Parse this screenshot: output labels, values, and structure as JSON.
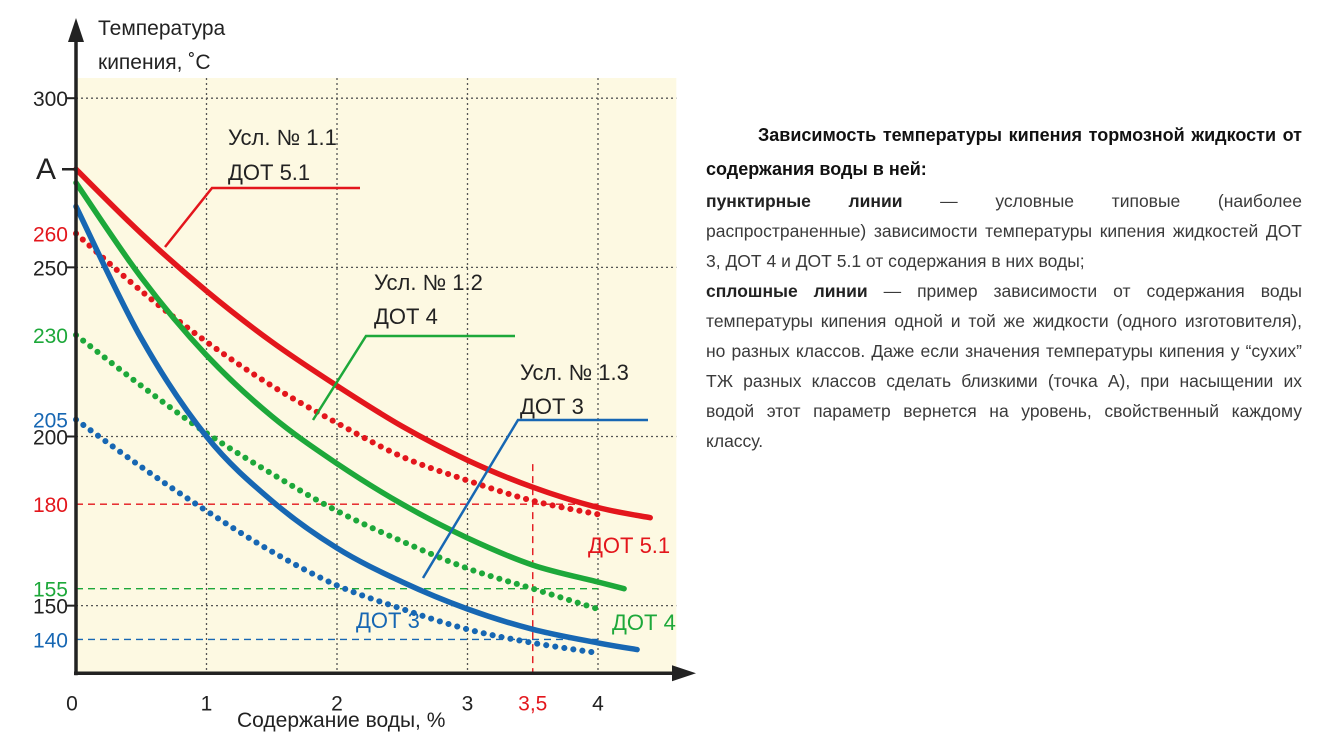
{
  "description": {
    "title": "Зависимость температуры кипения тормозной жидкости от содержания воды в ней:",
    "dashed_term": "пунктирные линии",
    "dashed_text": " — условные типовые (наиболее распространенные) зависимости температуры кипения жидкостей ДОТ 3, ДОТ 4 и ДОТ 5.1 от содержания в них воды;",
    "solid_term": "сплошные линии",
    "solid_text": " — пример зависимости от содержания воды температуры кипения одной и той же жидкости (одного изготовителя), но разных классов. Даже если значения температуры кипения у “сухих” ТЖ разных классов сделать близкими (точка А), при насыщении их водой этот параметр вернется на уровень, свойственный каждому классу."
  },
  "chart_data": {
    "type": "line",
    "title": "",
    "ylabel": [
      "Температура",
      "кипения, ˚С"
    ],
    "xlabel": "Содержание воды, %",
    "xlim": [
      0,
      4.6
    ],
    "ylim": [
      130,
      305
    ],
    "x_ticks": [
      "0",
      "1",
      "2",
      "3",
      "4"
    ],
    "y_ticks": [
      "150",
      "200",
      "250",
      "300"
    ],
    "grid": true,
    "point_A": {
      "label": "A",
      "y": 279
    },
    "colors": {
      "red": "#e3161c",
      "green": "#1da83a",
      "blue": "#1767b3",
      "axis": "#222222",
      "plot_bg": "#fdf9e2"
    },
    "reference_lines": [
      {
        "axis": "y",
        "value": 180,
        "label": "180",
        "color": "#e3161c",
        "x_end": 4.0
      },
      {
        "axis": "y",
        "value": 155,
        "label": "155",
        "color": "#1da83a",
        "x_end": 4.0
      },
      {
        "axis": "y",
        "value": 140,
        "label": "140",
        "color": "#1767b3",
        "x_end": 4.0
      },
      {
        "axis": "x",
        "value": 3.5,
        "label": "3,5",
        "color": "#e3161c"
      }
    ],
    "y_marks": [
      {
        "value": 260,
        "label": "260",
        "color": "#e3161c"
      },
      {
        "value": 230,
        "label": "230",
        "color": "#1da83a"
      },
      {
        "value": 205,
        "label": "205",
        "color": "#1767b3"
      }
    ],
    "series": [
      {
        "name": "Усл. № 1.1 ДОТ 5.1",
        "style": "solid",
        "color": "#e3161c",
        "x": [
          0,
          0.5,
          1,
          1.5,
          2,
          2.5,
          3,
          3.5,
          4,
          4.4
        ],
        "y": [
          279,
          260,
          243,
          228,
          215,
          203,
          193,
          185,
          179,
          176
        ],
        "callout_label": [
          "Усл. № 1.1",
          "ДОТ 5.1"
        ]
      },
      {
        "name": "Усл. № 1.2 ДОТ 4",
        "style": "solid",
        "color": "#1da83a",
        "x": [
          0,
          0.5,
          1,
          1.5,
          2,
          2.5,
          3,
          3.5,
          4,
          4.2
        ],
        "y": [
          275,
          247,
          224,
          206,
          192,
          180,
          170,
          162,
          157,
          155
        ],
        "callout_label": [
          "Усл. № 1.2",
          "ДОТ 4"
        ]
      },
      {
        "name": "Усл. № 1.3 ДОТ 3",
        "style": "solid",
        "color": "#1767b3",
        "x": [
          0,
          0.5,
          1,
          1.5,
          2,
          2.5,
          3,
          3.5,
          4,
          4.3
        ],
        "y": [
          268,
          229,
          200,
          181,
          167,
          157,
          149,
          143,
          139,
          137
        ],
        "callout_label": [
          "Усл. № 1.3",
          "ДОТ 3"
        ]
      },
      {
        "name": "ДОТ 5.1",
        "style": "dotted",
        "color": "#e3161c",
        "x": [
          0,
          0.5,
          1,
          1.5,
          2,
          2.5,
          3,
          3.5,
          4
        ],
        "y": [
          260,
          243,
          228,
          215,
          204,
          194,
          187,
          181,
          177
        ]
      },
      {
        "name": "ДОТ 4",
        "style": "dotted",
        "color": "#1da83a",
        "x": [
          0,
          0.5,
          1,
          1.5,
          2,
          2.5,
          3,
          3.5,
          4
        ],
        "y": [
          230,
          215,
          201,
          189,
          178,
          169,
          161,
          155,
          149
        ]
      },
      {
        "name": "ДОТ 3",
        "style": "dotted",
        "color": "#1767b3",
        "x": [
          0,
          0.5,
          1,
          1.5,
          2,
          2.5,
          3,
          3.5,
          4
        ],
        "y": [
          205,
          191,
          178,
          166,
          156,
          149,
          143,
          139,
          136
        ]
      }
    ]
  }
}
